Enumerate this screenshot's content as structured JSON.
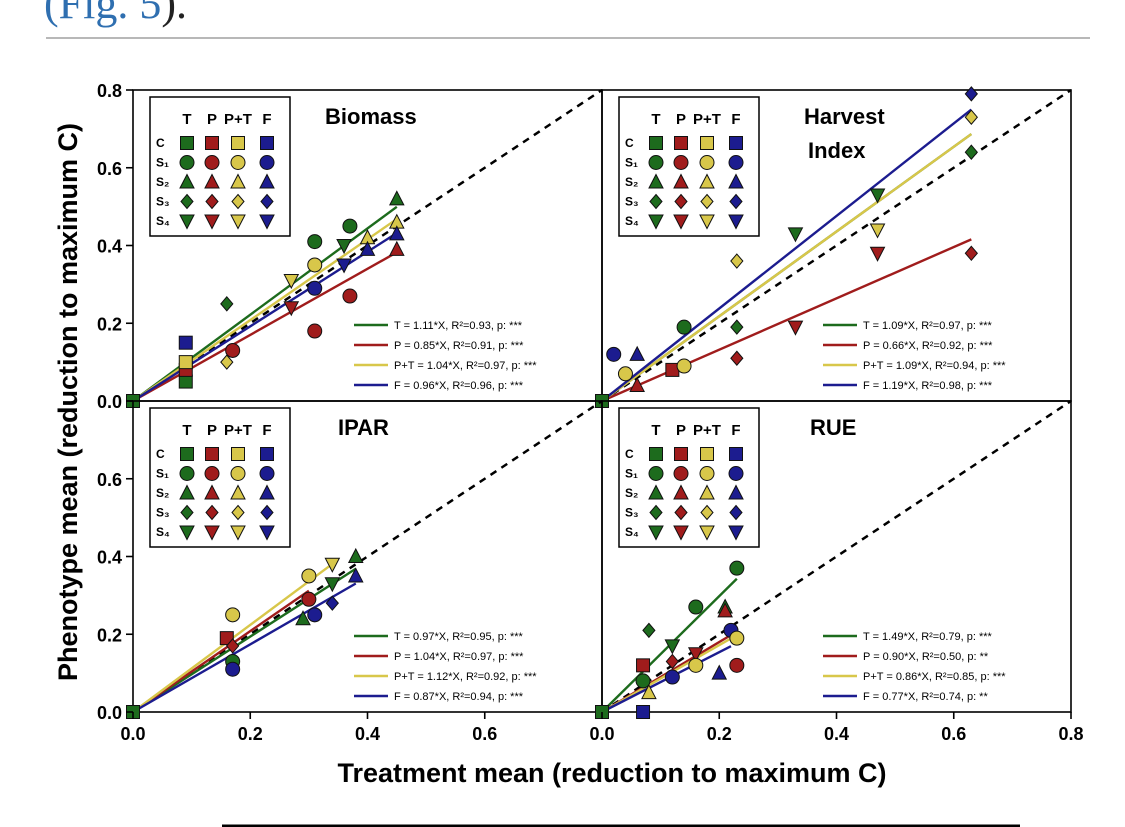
{
  "caption": {
    "ref": "(Fig. 5",
    "close": ")."
  },
  "figure": {
    "y_label": "Phenotype mean (reduction to maximum C)",
    "x_label": "Treatment mean (reduction to maximum C)",
    "y_ticks": [
      "0.0",
      "0.2",
      "0.4",
      "0.6",
      "0.8"
    ],
    "x_ticks_left": [
      "0.0",
      "0.2",
      "0.4",
      "0.6"
    ],
    "x_ticks_right": [
      "0.0",
      "0.2",
      "0.4",
      "0.6",
      "0.8"
    ],
    "legend": {
      "columns": [
        "T",
        "P",
        "P+T",
        "F"
      ],
      "rows": [
        "C",
        "S₁",
        "S₂",
        "S₃",
        "S₄"
      ]
    },
    "colors": {
      "T": "#1d6b1d",
      "P": "#a01c1c",
      "P+T": "#d8c74a",
      "F": "#1c1c8f"
    }
  },
  "chart_data": [
    {
      "type": "scatter",
      "title": "Biomass",
      "xlim": [
        0,
        0.8
      ],
      "ylim": [
        0,
        0.8
      ],
      "fits": [
        {
          "group": "T",
          "slope": 1.11,
          "label": "T = 1.11*X, R²=0.93, p: ***"
        },
        {
          "group": "P",
          "slope": 0.85,
          "label": "P = 0.85*X, R²=0.91, p: ***"
        },
        {
          "group": "P+T",
          "slope": 1.04,
          "label": "P+T = 1.04*X, R²=0.97, p: ***"
        },
        {
          "group": "F",
          "slope": 0.96,
          "label": "F = 0.96*X, R²=0.96, p: ***"
        }
      ],
      "points": [
        {
          "g": "T",
          "s": "C",
          "x": 0.0,
          "y": 0.0
        },
        {
          "g": "T",
          "s": "C",
          "x": 0.09,
          "y": 0.05
        },
        {
          "g": "P",
          "s": "C",
          "x": 0.09,
          "y": 0.08
        },
        {
          "g": "P+T",
          "s": "C",
          "x": 0.09,
          "y": 0.1
        },
        {
          "g": "F",
          "s": "C",
          "x": 0.09,
          "y": 0.15
        },
        {
          "g": "T",
          "s": "S3",
          "x": 0.16,
          "y": 0.25
        },
        {
          "g": "P+T",
          "s": "S3",
          "x": 0.16,
          "y": 0.1
        },
        {
          "g": "P",
          "s": "S1",
          "x": 0.17,
          "y": 0.13
        },
        {
          "g": "T",
          "s": "S1",
          "x": 0.31,
          "y": 0.41
        },
        {
          "g": "P",
          "s": "S1",
          "x": 0.31,
          "y": 0.18
        },
        {
          "g": "P+T",
          "s": "S1",
          "x": 0.31,
          "y": 0.35
        },
        {
          "g": "F",
          "s": "S1",
          "x": 0.31,
          "y": 0.29
        },
        {
          "g": "T",
          "s": "S1",
          "x": 0.37,
          "y": 0.45
        },
        {
          "g": "P",
          "s": "S1",
          "x": 0.37,
          "y": 0.27
        },
        {
          "g": "P+T",
          "s": "S4",
          "x": 0.27,
          "y": 0.31
        },
        {
          "g": "P",
          "s": "S4",
          "x": 0.27,
          "y": 0.24
        },
        {
          "g": "T",
          "s": "S4",
          "x": 0.36,
          "y": 0.4
        },
        {
          "g": "F",
          "s": "S4",
          "x": 0.36,
          "y": 0.35
        },
        {
          "g": "P+T",
          "s": "S2",
          "x": 0.4,
          "y": 0.42
        },
        {
          "g": "F",
          "s": "S2",
          "x": 0.4,
          "y": 0.39
        },
        {
          "g": "T",
          "s": "S2",
          "x": 0.45,
          "y": 0.52
        },
        {
          "g": "P+T",
          "s": "S2",
          "x": 0.45,
          "y": 0.46
        },
        {
          "g": "P",
          "s": "S2",
          "x": 0.45,
          "y": 0.39
        },
        {
          "g": "F",
          "s": "S2",
          "x": 0.45,
          "y": 0.43
        }
      ]
    },
    {
      "type": "scatter",
      "title": "Harvest Index",
      "xlim": [
        0,
        0.8
      ],
      "ylim": [
        0,
        0.8
      ],
      "fits": [
        {
          "group": "T",
          "slope": 1.09,
          "label": "T = 1.09*X, R²=0.97, p: ***"
        },
        {
          "group": "P",
          "slope": 0.66,
          "label": "P = 0.66*X, R²=0.92, p: ***"
        },
        {
          "group": "P+T",
          "slope": 1.09,
          "label": "P+T = 1.09*X, R²=0.94, p: ***"
        },
        {
          "group": "F",
          "slope": 1.19,
          "label": "F = 1.19*X, R²=0.98, p: ***"
        }
      ],
      "points": [
        {
          "g": "T",
          "s": "C",
          "x": 0.0,
          "y": 0.0
        },
        {
          "g": "F",
          "s": "S1",
          "x": 0.02,
          "y": 0.12
        },
        {
          "g": "F",
          "s": "S2",
          "x": 0.06,
          "y": 0.12
        },
        {
          "g": "P+T",
          "s": "S1",
          "x": 0.04,
          "y": 0.07
        },
        {
          "g": "P",
          "s": "S2",
          "x": 0.06,
          "y": 0.04
        },
        {
          "g": "P",
          "s": "C",
          "x": 0.12,
          "y": 0.08
        },
        {
          "g": "T",
          "s": "S1",
          "x": 0.14,
          "y": 0.19
        },
        {
          "g": "P+T",
          "s": "S1",
          "x": 0.14,
          "y": 0.09
        },
        {
          "g": "P+T",
          "s": "S3",
          "x": 0.23,
          "y": 0.36
        },
        {
          "g": "T",
          "s": "S3",
          "x": 0.23,
          "y": 0.19
        },
        {
          "g": "P",
          "s": "S3",
          "x": 0.23,
          "y": 0.11
        },
        {
          "g": "P",
          "s": "S4",
          "x": 0.33,
          "y": 0.19
        },
        {
          "g": "T",
          "s": "S4",
          "x": 0.33,
          "y": 0.43
        },
        {
          "g": "T",
          "s": "S4",
          "x": 0.47,
          "y": 0.53
        },
        {
          "g": "P+T",
          "s": "S4",
          "x": 0.47,
          "y": 0.44
        },
        {
          "g": "P",
          "s": "S4",
          "x": 0.47,
          "y": 0.38
        },
        {
          "g": "F",
          "s": "S3",
          "x": 0.63,
          "y": 0.79
        },
        {
          "g": "P+T",
          "s": "S3",
          "x": 0.63,
          "y": 0.73
        },
        {
          "g": "T",
          "s": "S3",
          "x": 0.63,
          "y": 0.64
        },
        {
          "g": "P",
          "s": "S3",
          "x": 0.63,
          "y": 0.38
        }
      ]
    },
    {
      "type": "scatter",
      "title": "IPAR",
      "xlim": [
        0,
        0.8
      ],
      "ylim": [
        0,
        0.8
      ],
      "fits": [
        {
          "group": "T",
          "slope": 0.97,
          "label": "T = 0.97*X, R²=0.95, p: ***"
        },
        {
          "group": "P",
          "slope": 1.04,
          "label": "P = 1.04*X, R²=0.97, p: ***"
        },
        {
          "group": "P+T",
          "slope": 1.12,
          "label": "P+T = 1.12*X, R²=0.92, p: ***"
        },
        {
          "group": "F",
          "slope": 0.87,
          "label": "F = 0.87*X, R²=0.94, p: ***"
        }
      ],
      "points": [
        {
          "g": "T",
          "s": "C",
          "x": 0.0,
          "y": 0.0
        },
        {
          "g": "P",
          "s": "C",
          "x": 0.16,
          "y": 0.19
        },
        {
          "g": "P+T",
          "s": "S1",
          "x": 0.17,
          "y": 0.25
        },
        {
          "g": "T",
          "s": "S1",
          "x": 0.17,
          "y": 0.13
        },
        {
          "g": "F",
          "s": "S1",
          "x": 0.17,
          "y": 0.11
        },
        {
          "g": "P",
          "s": "S3",
          "x": 0.17,
          "y": 0.17
        },
        {
          "g": "P+T",
          "s": "S1",
          "x": 0.3,
          "y": 0.35
        },
        {
          "g": "T",
          "s": "S2",
          "x": 0.29,
          "y": 0.24
        },
        {
          "g": "F",
          "s": "S1",
          "x": 0.31,
          "y": 0.25
        },
        {
          "g": "P",
          "s": "S1",
          "x": 0.3,
          "y": 0.29
        },
        {
          "g": "P+T",
          "s": "S4",
          "x": 0.34,
          "y": 0.38
        },
        {
          "g": "T",
          "s": "S4",
          "x": 0.34,
          "y": 0.33
        },
        {
          "g": "F",
          "s": "S3",
          "x": 0.34,
          "y": 0.28
        },
        {
          "g": "T",
          "s": "S2",
          "x": 0.38,
          "y": 0.4
        },
        {
          "g": "F",
          "s": "S2",
          "x": 0.38,
          "y": 0.35
        }
      ]
    },
    {
      "type": "scatter",
      "title": "RUE",
      "xlim": [
        0,
        0.8
      ],
      "ylim": [
        0,
        0.8
      ],
      "fits": [
        {
          "group": "T",
          "slope": 1.49,
          "label": "T = 1.49*X, R²=0.79, p: ***"
        },
        {
          "group": "P",
          "slope": 0.9,
          "label": "P = 0.90*X, R²=0.50, p: **"
        },
        {
          "group": "P+T",
          "slope": 0.86,
          "label": "P+T = 0.86*X, R²=0.85, p: ***"
        },
        {
          "group": "F",
          "slope": 0.77,
          "label": "F = 0.77*X, R²=0.74, p: **"
        }
      ],
      "points": [
        {
          "g": "T",
          "s": "C",
          "x": 0.0,
          "y": 0.0
        },
        {
          "g": "F",
          "s": "C",
          "x": 0.07,
          "y": 0.0
        },
        {
          "g": "T",
          "s": "S3",
          "x": 0.08,
          "y": 0.21
        },
        {
          "g": "P",
          "s": "C",
          "x": 0.07,
          "y": 0.12
        },
        {
          "g": "T",
          "s": "S1",
          "x": 0.07,
          "y": 0.08
        },
        {
          "g": "P+T",
          "s": "S2",
          "x": 0.08,
          "y": 0.05
        },
        {
          "g": "P",
          "s": "S3",
          "x": 0.12,
          "y": 0.13
        },
        {
          "g": "T",
          "s": "S4",
          "x": 0.12,
          "y": 0.17
        },
        {
          "g": "F",
          "s": "S1",
          "x": 0.12,
          "y": 0.09
        },
        {
          "g": "T",
          "s": "S1",
          "x": 0.16,
          "y": 0.27
        },
        {
          "g": "P",
          "s": "S4",
          "x": 0.16,
          "y": 0.15
        },
        {
          "g": "P+T",
          "s": "S1",
          "x": 0.16,
          "y": 0.12
        },
        {
          "g": "T",
          "s": "S2",
          "x": 0.21,
          "y": 0.27
        },
        {
          "g": "P",
          "s": "S2",
          "x": 0.21,
          "y": 0.26
        },
        {
          "g": "F",
          "s": "S1",
          "x": 0.22,
          "y": 0.21
        },
        {
          "g": "T",
          "s": "S1",
          "x": 0.23,
          "y": 0.37
        },
        {
          "g": "P+T",
          "s": "S1",
          "x": 0.23,
          "y": 0.19
        },
        {
          "g": "P",
          "s": "S1",
          "x": 0.23,
          "y": 0.12
        },
        {
          "g": "F",
          "s": "S2",
          "x": 0.2,
          "y": 0.1
        }
      ]
    }
  ]
}
